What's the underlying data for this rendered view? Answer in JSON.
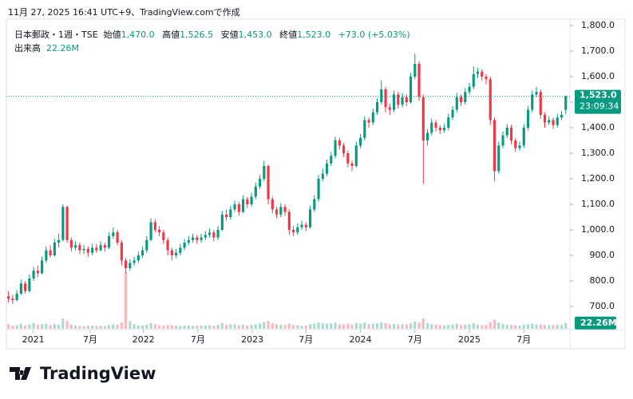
{
  "header": "11月 27, 2025 16:41 UTC+9、TradingView.comで作成",
  "legend": {
    "symbol": "日本郵政・1週・TSE",
    "open_name": "始値",
    "open": "1,470.0",
    "high_name": "高値",
    "high": "1,526.5",
    "low_name": "安値",
    "low": "1,453.0",
    "close_name": "終値",
    "close": "1,523.0",
    "change": "+73.0 (+5.03%)",
    "volume_name": "出来高",
    "volume": "22.26M"
  },
  "logo": "TradingView",
  "chart_data": {
    "type": "candlestick",
    "up_color": "#089981",
    "down_color": "#f23645",
    "ylim": [
      612.5,
      1825
    ],
    "yticks": [
      {
        "value": 700,
        "label": "700.0"
      },
      {
        "value": 800,
        "label": "800.0"
      },
      {
        "value": 900,
        "label": "900.0"
      },
      {
        "value": 1000,
        "label": "1,000.0"
      },
      {
        "value": 1100,
        "label": "1,100.0"
      },
      {
        "value": 1200,
        "label": "1,200.0"
      },
      {
        "value": 1300,
        "label": "1,300.0"
      },
      {
        "value": 1400,
        "label": "1,400.0"
      },
      {
        "value": 1500,
        "label": "1,500.0"
      },
      {
        "value": 1600,
        "label": "1,600.0"
      },
      {
        "value": 1700,
        "label": "1,700.0"
      },
      {
        "value": 1800,
        "label": "1,800.0"
      }
    ],
    "xlim": [
      -0.5,
      134
    ],
    "xticks": [
      {
        "value": 5.9,
        "label": "2021"
      },
      {
        "value": 19.5,
        "label": "7月"
      },
      {
        "value": 32.2,
        "label": "2022"
      },
      {
        "value": 45.2,
        "label": "7月"
      },
      {
        "value": 58.2,
        "label": "2023"
      },
      {
        "value": 71,
        "label": "7月"
      },
      {
        "value": 84,
        "label": "2024"
      },
      {
        "value": 97,
        "label": "7月"
      },
      {
        "value": 110,
        "label": "2025"
      },
      {
        "value": 123,
        "label": "7月"
      }
    ],
    "last_price": {
      "value": 1523,
      "label": "1,523.0",
      "countdown": "23:09:34"
    },
    "volume_ylim": [
      0,
      1200
    ],
    "last_volume": {
      "value": 22.26,
      "label": "22.26M"
    },
    "candles": [
      [
        740,
        760,
        715,
        730
      ],
      [
        730,
        745,
        710,
        725
      ],
      [
        725,
        765,
        720,
        750
      ],
      [
        750,
        805,
        745,
        790
      ],
      [
        790,
        800,
        750,
        760
      ],
      [
        760,
        825,
        755,
        810
      ],
      [
        810,
        855,
        800,
        840
      ],
      [
        840,
        860,
        815,
        830
      ],
      [
        830,
        895,
        825,
        880
      ],
      [
        880,
        935,
        870,
        920
      ],
      [
        920,
        940,
        890,
        900
      ],
      [
        900,
        965,
        895,
        950
      ],
      [
        950,
        985,
        930,
        960
      ],
      [
        960,
        1100,
        955,
        1090
      ],
      [
        1090,
        1095,
        950,
        960
      ],
      [
        960,
        970,
        915,
        930
      ],
      [
        930,
        955,
        920,
        940
      ],
      [
        940,
        950,
        905,
        920
      ],
      [
        920,
        940,
        905,
        925
      ],
      [
        925,
        935,
        895,
        910
      ],
      [
        910,
        945,
        900,
        930
      ],
      [
        930,
        945,
        910,
        920
      ],
      [
        920,
        955,
        915,
        940
      ],
      [
        940,
        950,
        915,
        930
      ],
      [
        930,
        990,
        925,
        975
      ],
      [
        975,
        1010,
        965,
        990
      ],
      [
        990,
        1000,
        940,
        950
      ],
      [
        950,
        960,
        860,
        880
      ],
      [
        880,
        890,
        830,
        850
      ],
      [
        850,
        885,
        840,
        870
      ],
      [
        870,
        895,
        860,
        880
      ],
      [
        880,
        915,
        870,
        900
      ],
      [
        900,
        935,
        890,
        920
      ],
      [
        920,
        975,
        910,
        960
      ],
      [
        960,
        1045,
        955,
        1030
      ],
      [
        1030,
        1040,
        990,
        1000
      ],
      [
        1000,
        1015,
        975,
        990
      ],
      [
        990,
        1000,
        945,
        960
      ],
      [
        960,
        970,
        900,
        920
      ],
      [
        920,
        930,
        880,
        900
      ],
      [
        900,
        925,
        890,
        910
      ],
      [
        910,
        945,
        900,
        930
      ],
      [
        930,
        965,
        920,
        950
      ],
      [
        950,
        975,
        940,
        960
      ],
      [
        960,
        985,
        950,
        970
      ],
      [
        970,
        980,
        945,
        960
      ],
      [
        960,
        985,
        950,
        970
      ],
      [
        970,
        995,
        960,
        980
      ],
      [
        980,
        1005,
        970,
        990
      ],
      [
        990,
        1000,
        955,
        970
      ],
      [
        970,
        1015,
        960,
        1000
      ],
      [
        1000,
        1075,
        995,
        1060
      ],
      [
        1060,
        1080,
        1035,
        1050
      ],
      [
        1050,
        1095,
        1040,
        1080
      ],
      [
        1080,
        1115,
        1070,
        1100
      ],
      [
        1100,
        1110,
        1055,
        1070
      ],
      [
        1070,
        1135,
        1065,
        1120
      ],
      [
        1120,
        1130,
        1085,
        1100
      ],
      [
        1100,
        1145,
        1090,
        1130
      ],
      [
        1130,
        1185,
        1120,
        1170
      ],
      [
        1170,
        1215,
        1160,
        1200
      ],
      [
        1200,
        1270,
        1190,
        1250
      ],
      [
        1250,
        1255,
        1100,
        1120
      ],
      [
        1120,
        1130,
        1065,
        1080
      ],
      [
        1080,
        1090,
        1045,
        1060
      ],
      [
        1060,
        1105,
        1050,
        1090
      ],
      [
        1090,
        1100,
        1055,
        1070
      ],
      [
        1070,
        1080,
        980,
        1000
      ],
      [
        1000,
        1015,
        975,
        990
      ],
      [
        990,
        1025,
        980,
        1010
      ],
      [
        1010,
        1035,
        1000,
        1020
      ],
      [
        1020,
        1030,
        995,
        1010
      ],
      [
        1010,
        1095,
        1005,
        1080
      ],
      [
        1080,
        1135,
        1070,
        1120
      ],
      [
        1120,
        1215,
        1110,
        1200
      ],
      [
        1200,
        1240,
        1190,
        1220
      ],
      [
        1220,
        1275,
        1210,
        1260
      ],
      [
        1260,
        1305,
        1250,
        1290
      ],
      [
        1290,
        1365,
        1280,
        1350
      ],
      [
        1350,
        1360,
        1315,
        1330
      ],
      [
        1330,
        1340,
        1285,
        1300
      ],
      [
        1300,
        1310,
        1245,
        1260
      ],
      [
        1260,
        1270,
        1230,
        1250
      ],
      [
        1250,
        1345,
        1245,
        1330
      ],
      [
        1330,
        1375,
        1320,
        1360
      ],
      [
        1360,
        1445,
        1350,
        1430
      ],
      [
        1430,
        1440,
        1400,
        1420
      ],
      [
        1420,
        1475,
        1410,
        1460
      ],
      [
        1460,
        1515,
        1450,
        1500
      ],
      [
        1500,
        1585,
        1490,
        1550
      ],
      [
        1550,
        1560,
        1460,
        1480
      ],
      [
        1480,
        1495,
        1450,
        1470
      ],
      [
        1470,
        1545,
        1460,
        1530
      ],
      [
        1530,
        1540,
        1475,
        1490
      ],
      [
        1490,
        1535,
        1480,
        1520
      ],
      [
        1520,
        1530,
        1485,
        1500
      ],
      [
        1500,
        1615,
        1495,
        1600
      ],
      [
        1600,
        1690,
        1590,
        1650
      ],
      [
        1650,
        1660,
        1505,
        1520
      ],
      [
        1520,
        1530,
        1180,
        1350
      ],
      [
        1350,
        1395,
        1330,
        1380
      ],
      [
        1380,
        1435,
        1370,
        1420
      ],
      [
        1420,
        1430,
        1385,
        1400
      ],
      [
        1400,
        1410,
        1375,
        1390
      ],
      [
        1390,
        1415,
        1380,
        1400
      ],
      [
        1400,
        1455,
        1390,
        1440
      ],
      [
        1440,
        1485,
        1430,
        1470
      ],
      [
        1470,
        1535,
        1460,
        1520
      ],
      [
        1520,
        1530,
        1485,
        1500
      ],
      [
        1500,
        1555,
        1490,
        1540
      ],
      [
        1540,
        1575,
        1530,
        1560
      ],
      [
        1560,
        1640,
        1550,
        1610
      ],
      [
        1610,
        1635,
        1595,
        1620
      ],
      [
        1620,
        1630,
        1585,
        1600
      ],
      [
        1600,
        1610,
        1570,
        1590
      ],
      [
        1590,
        1600,
        1410,
        1430
      ],
      [
        1430,
        1440,
        1190,
        1230
      ],
      [
        1230,
        1345,
        1220,
        1330
      ],
      [
        1330,
        1385,
        1320,
        1370
      ],
      [
        1370,
        1415,
        1360,
        1400
      ],
      [
        1400,
        1410,
        1335,
        1350
      ],
      [
        1350,
        1360,
        1305,
        1320
      ],
      [
        1320,
        1345,
        1310,
        1330
      ],
      [
        1330,
        1415,
        1320,
        1400
      ],
      [
        1400,
        1485,
        1390,
        1470
      ],
      [
        1470,
        1545,
        1460,
        1530
      ],
      [
        1530,
        1560,
        1520,
        1540
      ],
      [
        1540,
        1550,
        1435,
        1450
      ],
      [
        1450,
        1460,
        1400,
        1420
      ],
      [
        1420,
        1445,
        1410,
        1430
      ],
      [
        1430,
        1440,
        1395,
        1410
      ],
      [
        1410,
        1455,
        1400,
        1440
      ],
      [
        1440,
        1465,
        1430,
        1450
      ],
      [
        1470,
        1526.5,
        1453,
        1523
      ]
    ],
    "volumes": [
      18,
      12,
      14,
      20,
      13,
      16,
      22,
      15,
      18,
      20,
      14,
      19,
      17,
      40,
      30,
      16,
      12,
      11,
      10,
      12,
      13,
      11,
      12,
      10,
      15,
      18,
      16,
      25,
      220,
      30,
      18,
      14,
      13,
      16,
      22,
      18,
      14,
      13,
      15,
      14,
      12,
      11,
      12,
      13,
      11,
      12,
      13,
      12,
      14,
      12,
      15,
      22,
      16,
      18,
      17,
      14,
      16,
      13,
      15,
      18,
      20,
      26,
      30,
      22,
      18,
      16,
      14,
      20,
      15,
      13,
      12,
      12,
      18,
      20,
      25,
      22,
      20,
      21,
      24,
      18,
      17,
      20,
      16,
      22,
      20,
      24,
      18,
      20,
      21,
      26,
      22,
      17,
      19,
      16,
      18,
      17,
      22,
      28,
      24,
      40,
      22,
      18,
      16,
      14,
      13,
      15,
      16,
      20,
      15,
      16,
      17,
      22,
      16,
      14,
      15,
      26,
      35,
      24,
      18,
      16,
      15,
      14,
      13,
      16,
      18,
      20,
      17,
      18,
      15,
      14,
      14,
      16,
      15,
      22.26
    ]
  }
}
